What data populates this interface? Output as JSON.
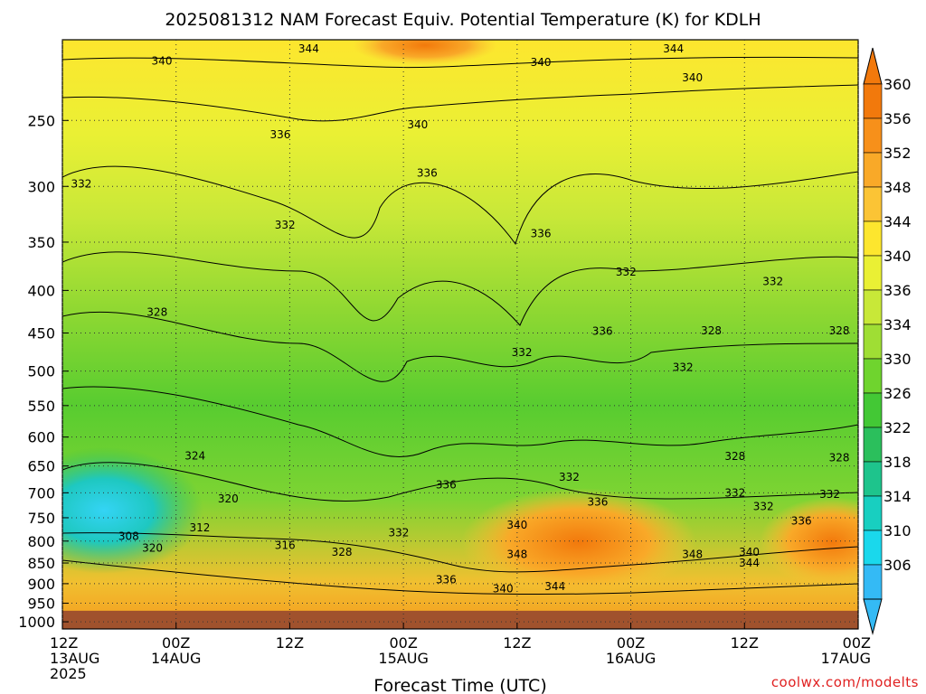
{
  "chart_data": {
    "type": "heatmap",
    "title": "2025081312 NAM Forecast Equiv. Potential Temperature (K) for KDLH",
    "xlabel": "Forecast Time (UTC)",
    "ylabel": "",
    "x_ticks": [
      {
        "hour": 0,
        "lines": [
          "12Z",
          "13AUG",
          "2025"
        ]
      },
      {
        "hour": 12,
        "lines": [
          "00Z",
          "14AUG"
        ]
      },
      {
        "hour": 24,
        "lines": [
          "12Z"
        ]
      },
      {
        "hour": 36,
        "lines": [
          "00Z",
          "15AUG"
        ]
      },
      {
        "hour": 48,
        "lines": [
          "12Z"
        ]
      },
      {
        "hour": 60,
        "lines": [
          "00Z",
          "16AUG"
        ]
      },
      {
        "hour": 72,
        "lines": [
          "12Z"
        ]
      },
      {
        "hour": 84,
        "lines": [
          "00Z",
          "17AUG"
        ]
      }
    ],
    "xlim": [
      0,
      84
    ],
    "y_ticks": [
      250,
      300,
      350,
      400,
      450,
      500,
      550,
      600,
      650,
      700,
      750,
      800,
      850,
      900,
      950,
      1000
    ],
    "ylim": [
      1020,
      200
    ],
    "y_scale": "log-pressure",
    "colorbar": {
      "ticks": [
        360,
        356,
        352,
        348,
        344,
        340,
        336,
        334,
        330,
        326,
        322,
        318,
        314,
        310,
        306
      ],
      "colors": [
        "#f2790c",
        "#f7901a",
        "#f9a928",
        "#fbc435",
        "#fde62e",
        "#eaf034",
        "#c8e838",
        "#9fde34",
        "#6fd42e",
        "#43c835",
        "#2bbf5c",
        "#1ec48c",
        "#18cfc0",
        "#1ad8ec",
        "#34baf5"
      ],
      "extend": "both"
    },
    "ground_below_hpa": 970,
    "ground_color": "#a0522d",
    "contour_labels": [
      {
        "hour": 10.5,
        "hpa": 212,
        "text": "340"
      },
      {
        "hour": 26,
        "hpa": 205,
        "text": "344"
      },
      {
        "hour": 50.5,
        "hpa": 213,
        "text": "340"
      },
      {
        "hour": 64.5,
        "hpa": 205,
        "text": "344"
      },
      {
        "hour": 66.5,
        "hpa": 222,
        "text": "340"
      },
      {
        "hour": 37.5,
        "hpa": 253,
        "text": "340"
      },
      {
        "hour": 23,
        "hpa": 260,
        "text": "336"
      },
      {
        "hour": 2,
        "hpa": 298,
        "text": "332"
      },
      {
        "hour": 38.5,
        "hpa": 289,
        "text": "336"
      },
      {
        "hour": 23.5,
        "hpa": 334,
        "text": "332"
      },
      {
        "hour": 50.5,
        "hpa": 342,
        "text": "336"
      },
      {
        "hour": 59.5,
        "hpa": 380,
        "text": "332"
      },
      {
        "hour": 75,
        "hpa": 390,
        "text": "332"
      },
      {
        "hour": 10,
        "hpa": 425,
        "text": "328"
      },
      {
        "hour": 57,
        "hpa": 448,
        "text": "336"
      },
      {
        "hour": 68.5,
        "hpa": 447,
        "text": "328"
      },
      {
        "hour": 82,
        "hpa": 447,
        "text": "328"
      },
      {
        "hour": 48.5,
        "hpa": 475,
        "text": "332"
      },
      {
        "hour": 65.5,
        "hpa": 495,
        "text": "332"
      },
      {
        "hour": 14,
        "hpa": 632,
        "text": "324"
      },
      {
        "hour": 71,
        "hpa": 633,
        "text": "328"
      },
      {
        "hour": 82,
        "hpa": 635,
        "text": "328"
      },
      {
        "hour": 40.5,
        "hpa": 685,
        "text": "336"
      },
      {
        "hour": 53.5,
        "hpa": 670,
        "text": "332"
      },
      {
        "hour": 71,
        "hpa": 700,
        "text": "332"
      },
      {
        "hour": 81,
        "hpa": 703,
        "text": "332"
      },
      {
        "hour": 17.5,
        "hpa": 712,
        "text": "320"
      },
      {
        "hour": 56.5,
        "hpa": 718,
        "text": "336"
      },
      {
        "hour": 74,
        "hpa": 727,
        "text": "332"
      },
      {
        "hour": 78,
        "hpa": 757,
        "text": "336"
      },
      {
        "hour": 48,
        "hpa": 765,
        "text": "340"
      },
      {
        "hour": 14.5,
        "hpa": 771,
        "text": "312"
      },
      {
        "hour": 7,
        "hpa": 790,
        "text": "308"
      },
      {
        "hour": 35.5,
        "hpa": 782,
        "text": "332"
      },
      {
        "hour": 9.5,
        "hpa": 816,
        "text": "320"
      },
      {
        "hour": 23.5,
        "hpa": 810,
        "text": "316"
      },
      {
        "hour": 29.5,
        "hpa": 825,
        "text": "328"
      },
      {
        "hour": 48,
        "hpa": 830,
        "text": "348"
      },
      {
        "hour": 66.5,
        "hpa": 830,
        "text": "348"
      },
      {
        "hour": 72.5,
        "hpa": 825,
        "text": "340"
      },
      {
        "hour": 72.5,
        "hpa": 850,
        "text": "344"
      },
      {
        "hour": 40.5,
        "hpa": 890,
        "text": "336"
      },
      {
        "hour": 46.5,
        "hpa": 913,
        "text": "340"
      },
      {
        "hour": 52,
        "hpa": 907,
        "text": "344"
      }
    ],
    "credit": "coolwx.com/modelts"
  }
}
